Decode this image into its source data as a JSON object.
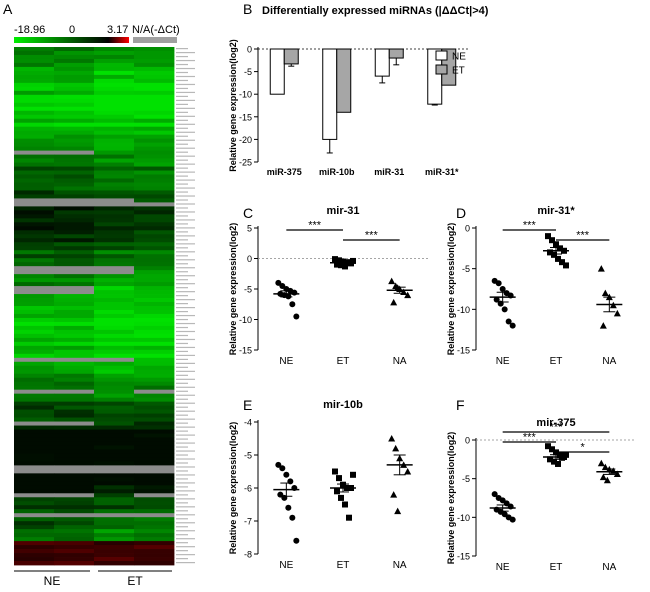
{
  "panel_labels": {
    "a": "A",
    "b": "B",
    "c": "C",
    "d": "D",
    "e": "E",
    "f": "F"
  },
  "heatmap": {
    "scale_min": "-18.96",
    "scale_mid": "0",
    "scale_max": "3.17",
    "na_label": "N/A(-ΔCt)",
    "groups": [
      "NE",
      "ET"
    ],
    "colors": {
      "low": "#00ee00",
      "mid": "#000000",
      "high": "#ff0000",
      "na": "#a0a0a0"
    }
  },
  "chart_data": [
    {
      "id": "B",
      "type": "bar",
      "title": "Differentially expressed miRNAs  (|ΔΔCt|>4)",
      "ylabel": "Relative gene expression(log2)",
      "xlabel": "",
      "ylim": [
        -25,
        0
      ],
      "yticks": [
        0,
        -5,
        -10,
        -15,
        -20,
        -25
      ],
      "categories": [
        "miR-375",
        "miR-10b",
        "miR-31",
        "miR-31*"
      ],
      "series": [
        {
          "name": "NE",
          "color": "#ffffff",
          "values": [
            -10,
            -20,
            -6,
            -12.2
          ],
          "errors": [
            0,
            3,
            1.5,
            0.2
          ]
        },
        {
          "name": "ET",
          "color": "#a6a6a6",
          "values": [
            -3.3,
            -14,
            -2,
            -8
          ],
          "errors": [
            0.5,
            0,
            1.5,
            0
          ]
        }
      ],
      "legend": "top-right"
    },
    {
      "id": "C",
      "type": "scatter",
      "title": "mir-31",
      "ylabel": "Relative gene expression(log2)",
      "ylim": [
        -15,
        5
      ],
      "yticks": [
        5,
        0,
        -5,
        -10,
        -15
      ],
      "categories": [
        "NE",
        "ET",
        "NA"
      ],
      "markers": [
        "circle",
        "square",
        "triangle"
      ],
      "points": [
        [
          -4,
          -4.5,
          -5,
          -5.3,
          -5.6,
          -5.8,
          -6,
          -6.2,
          -7.5,
          -9.5
        ],
        [
          -0.1,
          -0.3,
          -0.5,
          -0.6,
          -0.8,
          -1,
          -1.1,
          -1.3,
          -0.7,
          -0.4
        ],
        [
          -3.7,
          -4.5,
          -5,
          -5.5,
          -6,
          -7.2,
          -4.8
        ]
      ],
      "means": [
        -5.8,
        -0.7,
        -5.2
      ],
      "sems": [
        0.5,
        0.2,
        0.5
      ],
      "dashed_zero": true,
      "significance": [
        {
          "from": 0,
          "to": 1,
          "label": "***"
        },
        {
          "from": 1,
          "to": 2,
          "label": "***"
        }
      ]
    },
    {
      "id": "D",
      "type": "scatter",
      "title": "mir-31*",
      "ylabel": "Relative gene expression(log2)",
      "ylim": [
        -15,
        0
      ],
      "yticks": [
        0,
        -5,
        -10,
        -15
      ],
      "categories": [
        "NE",
        "ET",
        "NA"
      ],
      "markers": [
        "circle",
        "square",
        "triangle"
      ],
      "points": [
        [
          -6.5,
          -6.8,
          -7.5,
          -8,
          -8.3,
          -8.8,
          -9.3,
          -10,
          -11.5,
          -12
        ],
        [
          -1,
          -1.5,
          -2,
          -2.5,
          -2.8,
          -3,
          -3.3,
          -3.8,
          -4.2,
          -4.6
        ],
        [
          -5,
          -8,
          -8.5,
          -9.5,
          -10.5,
          -12
        ]
      ],
      "means": [
        -8.5,
        -2.8,
        -9.4
      ],
      "sems": [
        0.6,
        0.4,
        0.9
      ],
      "dashed_zero": false,
      "significance": [
        {
          "from": 0,
          "to": 1,
          "label": "***"
        },
        {
          "from": 1,
          "to": 2,
          "label": "***"
        }
      ]
    },
    {
      "id": "E",
      "type": "scatter",
      "title": "mir-10b",
      "ylabel": "Relative gene expression(log2)",
      "ylim": [
        -8,
        -4
      ],
      "yticks": [
        -4,
        -5,
        -6,
        -7,
        -8
      ],
      "categories": [
        "NE",
        "ET",
        "NA"
      ],
      "markers": [
        "circle",
        "square",
        "triangle"
      ],
      "points": [
        [
          -5.3,
          -5.4,
          -5.6,
          -5.8,
          -6,
          -6.2,
          -6.3,
          -6.6,
          -6.9,
          -7.6
        ],
        [
          -5.5,
          -5.7,
          -5.9,
          -6,
          -6,
          -6.1,
          -6.3,
          -6.5,
          -6.9,
          -5.6
        ],
        [
          -4.5,
          -4.8,
          -5.1,
          -5.3,
          -5.5,
          -6.2,
          -6.7
        ]
      ],
      "means": [
        -6.05,
        -6.0,
        -5.3
      ],
      "sems": [
        0.2,
        0.12,
        0.3
      ],
      "dashed_zero": false,
      "significance": []
    },
    {
      "id": "F",
      "type": "scatter",
      "title": "mir-375",
      "ylabel": "Relative gene expression(log2)",
      "ylim": [
        -15,
        0
      ],
      "yticks": [
        0,
        -5,
        -10,
        -15
      ],
      "categories": [
        "NE",
        "ET",
        "NA"
      ],
      "markers": [
        "circle",
        "square",
        "triangle"
      ],
      "points": [
        [
          -7,
          -7.5,
          -7.8,
          -8.2,
          -8.6,
          -9,
          -9.3,
          -9.6,
          -10,
          -10.3
        ],
        [
          -0.8,
          -1.2,
          -1.6,
          -2,
          -2.2,
          -2.5,
          -2.8,
          -3.1,
          -2.3,
          -1.9
        ],
        [
          -3,
          -3.5,
          -3.8,
          -4,
          -4.4,
          -4.8,
          -5.2
        ]
      ],
      "means": [
        -8.8,
        -2.2,
        -4.1
      ],
      "sems": [
        0.4,
        0.3,
        0.35
      ],
      "dashed_zero": true,
      "significance": [
        {
          "from": 0,
          "to": 2,
          "label": "***"
        },
        {
          "from": 0,
          "to": 1,
          "label": "***"
        },
        {
          "from": 1,
          "to": 2,
          "label": "*"
        }
      ]
    }
  ]
}
